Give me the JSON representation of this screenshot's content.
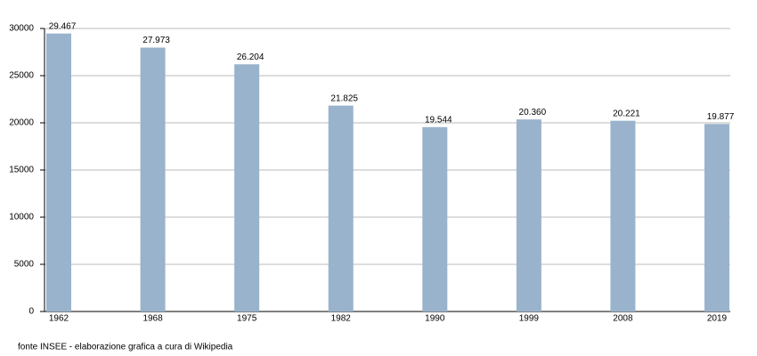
{
  "chart_data": {
    "type": "bar",
    "categories": [
      "1962",
      "1968",
      "1975",
      "1982",
      "1990",
      "1999",
      "2008",
      "2019"
    ],
    "values": [
      29467,
      27973,
      26204,
      21825,
      19544,
      20360,
      20221,
      19877
    ],
    "value_labels": [
      "29.467",
      "27.973",
      "26.204",
      "21.825",
      "19.544",
      "20.360",
      "20.221",
      "19.877"
    ],
    "color": "#99b3cc",
    "ylim": [
      0,
      30000
    ],
    "yticks": [
      0,
      5000,
      10000,
      15000,
      20000,
      25000,
      30000
    ],
    "grid": true,
    "source": "fonte INSEE - elaborazione grafica a cura di Wikipedia"
  }
}
